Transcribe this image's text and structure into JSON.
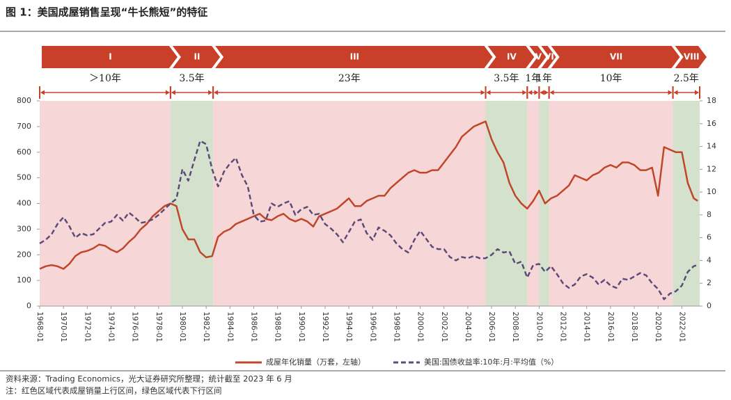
{
  "chart_data": {
    "type": "line",
    "title": "图 1：美国成屋销售呈现“牛长熊短”的特征",
    "source": "资料来源：Trading Economics，光大证券研究所整理；统计截至 2023 年 6 月",
    "note": "注：红色区域代表成屋销量上行区间，绿色区域代表下行区间",
    "phases": [
      {
        "label": "I",
        "duration": "＞10年",
        "start": "1968-01",
        "end": "1979-01",
        "color": "#f6d6d6"
      },
      {
        "label": "II",
        "duration": "3.5年",
        "start": "1979-01",
        "end": "1982-08",
        "color": "#d4e2cd"
      },
      {
        "label": "III",
        "duration": "23年",
        "start": "1982-08",
        "end": "2005-07",
        "color": "#f6d6d6"
      },
      {
        "label": "IV",
        "duration": "3.5年",
        "start": "2005-07",
        "end": "2009-01",
        "color": "#d4e2cd"
      },
      {
        "label": "V",
        "duration": "1年",
        "start": "2009-01",
        "end": "2010-01",
        "color": "#f6d6d6"
      },
      {
        "label": "VI",
        "duration": "1年",
        "start": "2010-01",
        "end": "2010-11",
        "color": "#d4e2cd"
      },
      {
        "label": "VII",
        "duration": "10年",
        "start": "2010-11",
        "end": "2021-04",
        "color": "#f6d6d6"
      },
      {
        "label": "VIII",
        "duration": "2.5年",
        "start": "2021-04",
        "end": "2023-07",
        "color": "#d4e2cd"
      }
    ],
    "x": [
      "1968-01",
      "1968-07",
      "1969-01",
      "1969-07",
      "1970-01",
      "1970-07",
      "1971-01",
      "1971-07",
      "1972-01",
      "1972-07",
      "1973-01",
      "1973-07",
      "1974-01",
      "1974-07",
      "1975-01",
      "1975-07",
      "1976-01",
      "1976-07",
      "1977-01",
      "1977-07",
      "1978-01",
      "1978-07",
      "1979-01",
      "1979-07",
      "1980-01",
      "1980-07",
      "1981-01",
      "1981-07",
      "1982-01",
      "1982-07",
      "1983-01",
      "1983-07",
      "1984-01",
      "1984-07",
      "1985-01",
      "1985-07",
      "1986-01",
      "1986-07",
      "1987-01",
      "1987-07",
      "1988-01",
      "1988-07",
      "1989-01",
      "1989-07",
      "1990-01",
      "1990-07",
      "1991-01",
      "1991-07",
      "1992-01",
      "1992-07",
      "1993-01",
      "1993-07",
      "1994-01",
      "1994-07",
      "1995-01",
      "1995-07",
      "1996-01",
      "1996-07",
      "1997-01",
      "1997-07",
      "1998-01",
      "1998-07",
      "1999-01",
      "1999-07",
      "2000-01",
      "2000-07",
      "2001-01",
      "2001-07",
      "2002-01",
      "2002-07",
      "2003-01",
      "2003-07",
      "2004-01",
      "2004-07",
      "2005-01",
      "2005-07",
      "2006-01",
      "2006-07",
      "2007-01",
      "2007-07",
      "2008-01",
      "2008-07",
      "2009-01",
      "2009-07",
      "2010-01",
      "2010-07",
      "2011-01",
      "2011-07",
      "2012-01",
      "2012-07",
      "2013-01",
      "2013-07",
      "2014-01",
      "2014-07",
      "2015-01",
      "2015-07",
      "2016-01",
      "2016-07",
      "2017-01",
      "2017-07",
      "2018-01",
      "2018-07",
      "2019-01",
      "2019-07",
      "2020-01",
      "2020-07",
      "2021-01",
      "2021-07",
      "2022-01",
      "2022-07",
      "2023-01",
      "2023-05"
    ],
    "series": [
      {
        "name": "成屋年化销量（万套，左轴）",
        "color": "#c0462a",
        "dash": false,
        "values": [
          145,
          155,
          160,
          155,
          145,
          165,
          195,
          210,
          215,
          225,
          240,
          235,
          220,
          210,
          225,
          250,
          270,
          300,
          320,
          350,
          370,
          390,
          400,
          390,
          300,
          260,
          260,
          210,
          190,
          195,
          270,
          290,
          300,
          320,
          330,
          340,
          350,
          360,
          340,
          335,
          350,
          360,
          340,
          330,
          340,
          330,
          310,
          350,
          360,
          370,
          380,
          400,
          420,
          390,
          390,
          410,
          420,
          430,
          430,
          460,
          480,
          500,
          520,
          530,
          520,
          520,
          530,
          530,
          560,
          590,
          620,
          660,
          680,
          700,
          710,
          720,
          650,
          600,
          560,
          480,
          430,
          400,
          380,
          410,
          450,
          400,
          420,
          430,
          450,
          470,
          510,
          500,
          490,
          510,
          520,
          540,
          550,
          540,
          560,
          560,
          550,
          530,
          530,
          540,
          430,
          620,
          610,
          600,
          600,
          480,
          420,
          410
        ]
      },
      {
        "name": "美国:国债收益率:10年:月:平均值（%）",
        "color": "#5b4b78",
        "dash": true,
        "axis": "y2",
        "values": [
          5.5,
          5.8,
          6.3,
          7.2,
          7.8,
          7.0,
          6.0,
          6.4,
          6.2,
          6.3,
          6.8,
          7.3,
          7.4,
          8.0,
          7.5,
          8.2,
          7.8,
          7.3,
          7.4,
          7.6,
          8.0,
          8.5,
          9.0,
          9.4,
          12.0,
          11.0,
          12.8,
          14.5,
          14.2,
          12.0,
          10.5,
          11.8,
          12.5,
          13.0,
          11.5,
          10.5,
          8.0,
          7.4,
          7.5,
          9.0,
          8.7,
          9.0,
          9.2,
          8.0,
          8.5,
          8.7,
          8.0,
          8.1,
          7.2,
          6.8,
          6.3,
          5.6,
          6.5,
          7.4,
          7.6,
          6.4,
          5.8,
          6.9,
          6.6,
          6.2,
          5.5,
          5.0,
          4.7,
          5.8,
          6.6,
          5.9,
          5.2,
          5.0,
          5.0,
          4.3,
          4.0,
          4.3,
          4.2,
          4.4,
          4.2,
          4.2,
          4.5,
          5.0,
          4.7,
          4.8,
          3.7,
          3.9,
          2.5,
          3.6,
          3.7,
          3.0,
          3.5,
          2.8,
          2.0,
          1.6,
          1.9,
          2.6,
          2.8,
          2.5,
          1.9,
          2.3,
          1.8,
          1.6,
          2.4,
          2.3,
          2.6,
          2.9,
          2.7,
          2.0,
          1.5,
          0.6,
          1.1,
          1.3,
          1.8,
          3.0,
          3.5,
          3.6
        ]
      }
    ],
    "xlim": [
      "1968-01",
      "2023-07"
    ],
    "xticks": [
      "1968-01",
      "1970-01",
      "1972-01",
      "1974-01",
      "1976-01",
      "1978-01",
      "1980-01",
      "1982-01",
      "1984-01",
      "1986-01",
      "1988-01",
      "1990-01",
      "1992-01",
      "1994-01",
      "1996-01",
      "1998-01",
      "2000-01",
      "2002-01",
      "2004-01",
      "2006-01",
      "2008-01",
      "2010-01",
      "2012-01",
      "2014-01",
      "2016-01",
      "2018-01",
      "2020-01",
      "2022-01"
    ],
    "ylim": [
      0,
      800
    ],
    "yticks": [
      0,
      100,
      200,
      300,
      400,
      500,
      600,
      700,
      800
    ],
    "y2lim": [
      0,
      18
    ],
    "y2ticks": [
      0,
      2,
      4,
      6,
      8,
      10,
      12,
      14,
      16,
      18
    ],
    "banner_color": "#c8402a",
    "grid": false
  }
}
